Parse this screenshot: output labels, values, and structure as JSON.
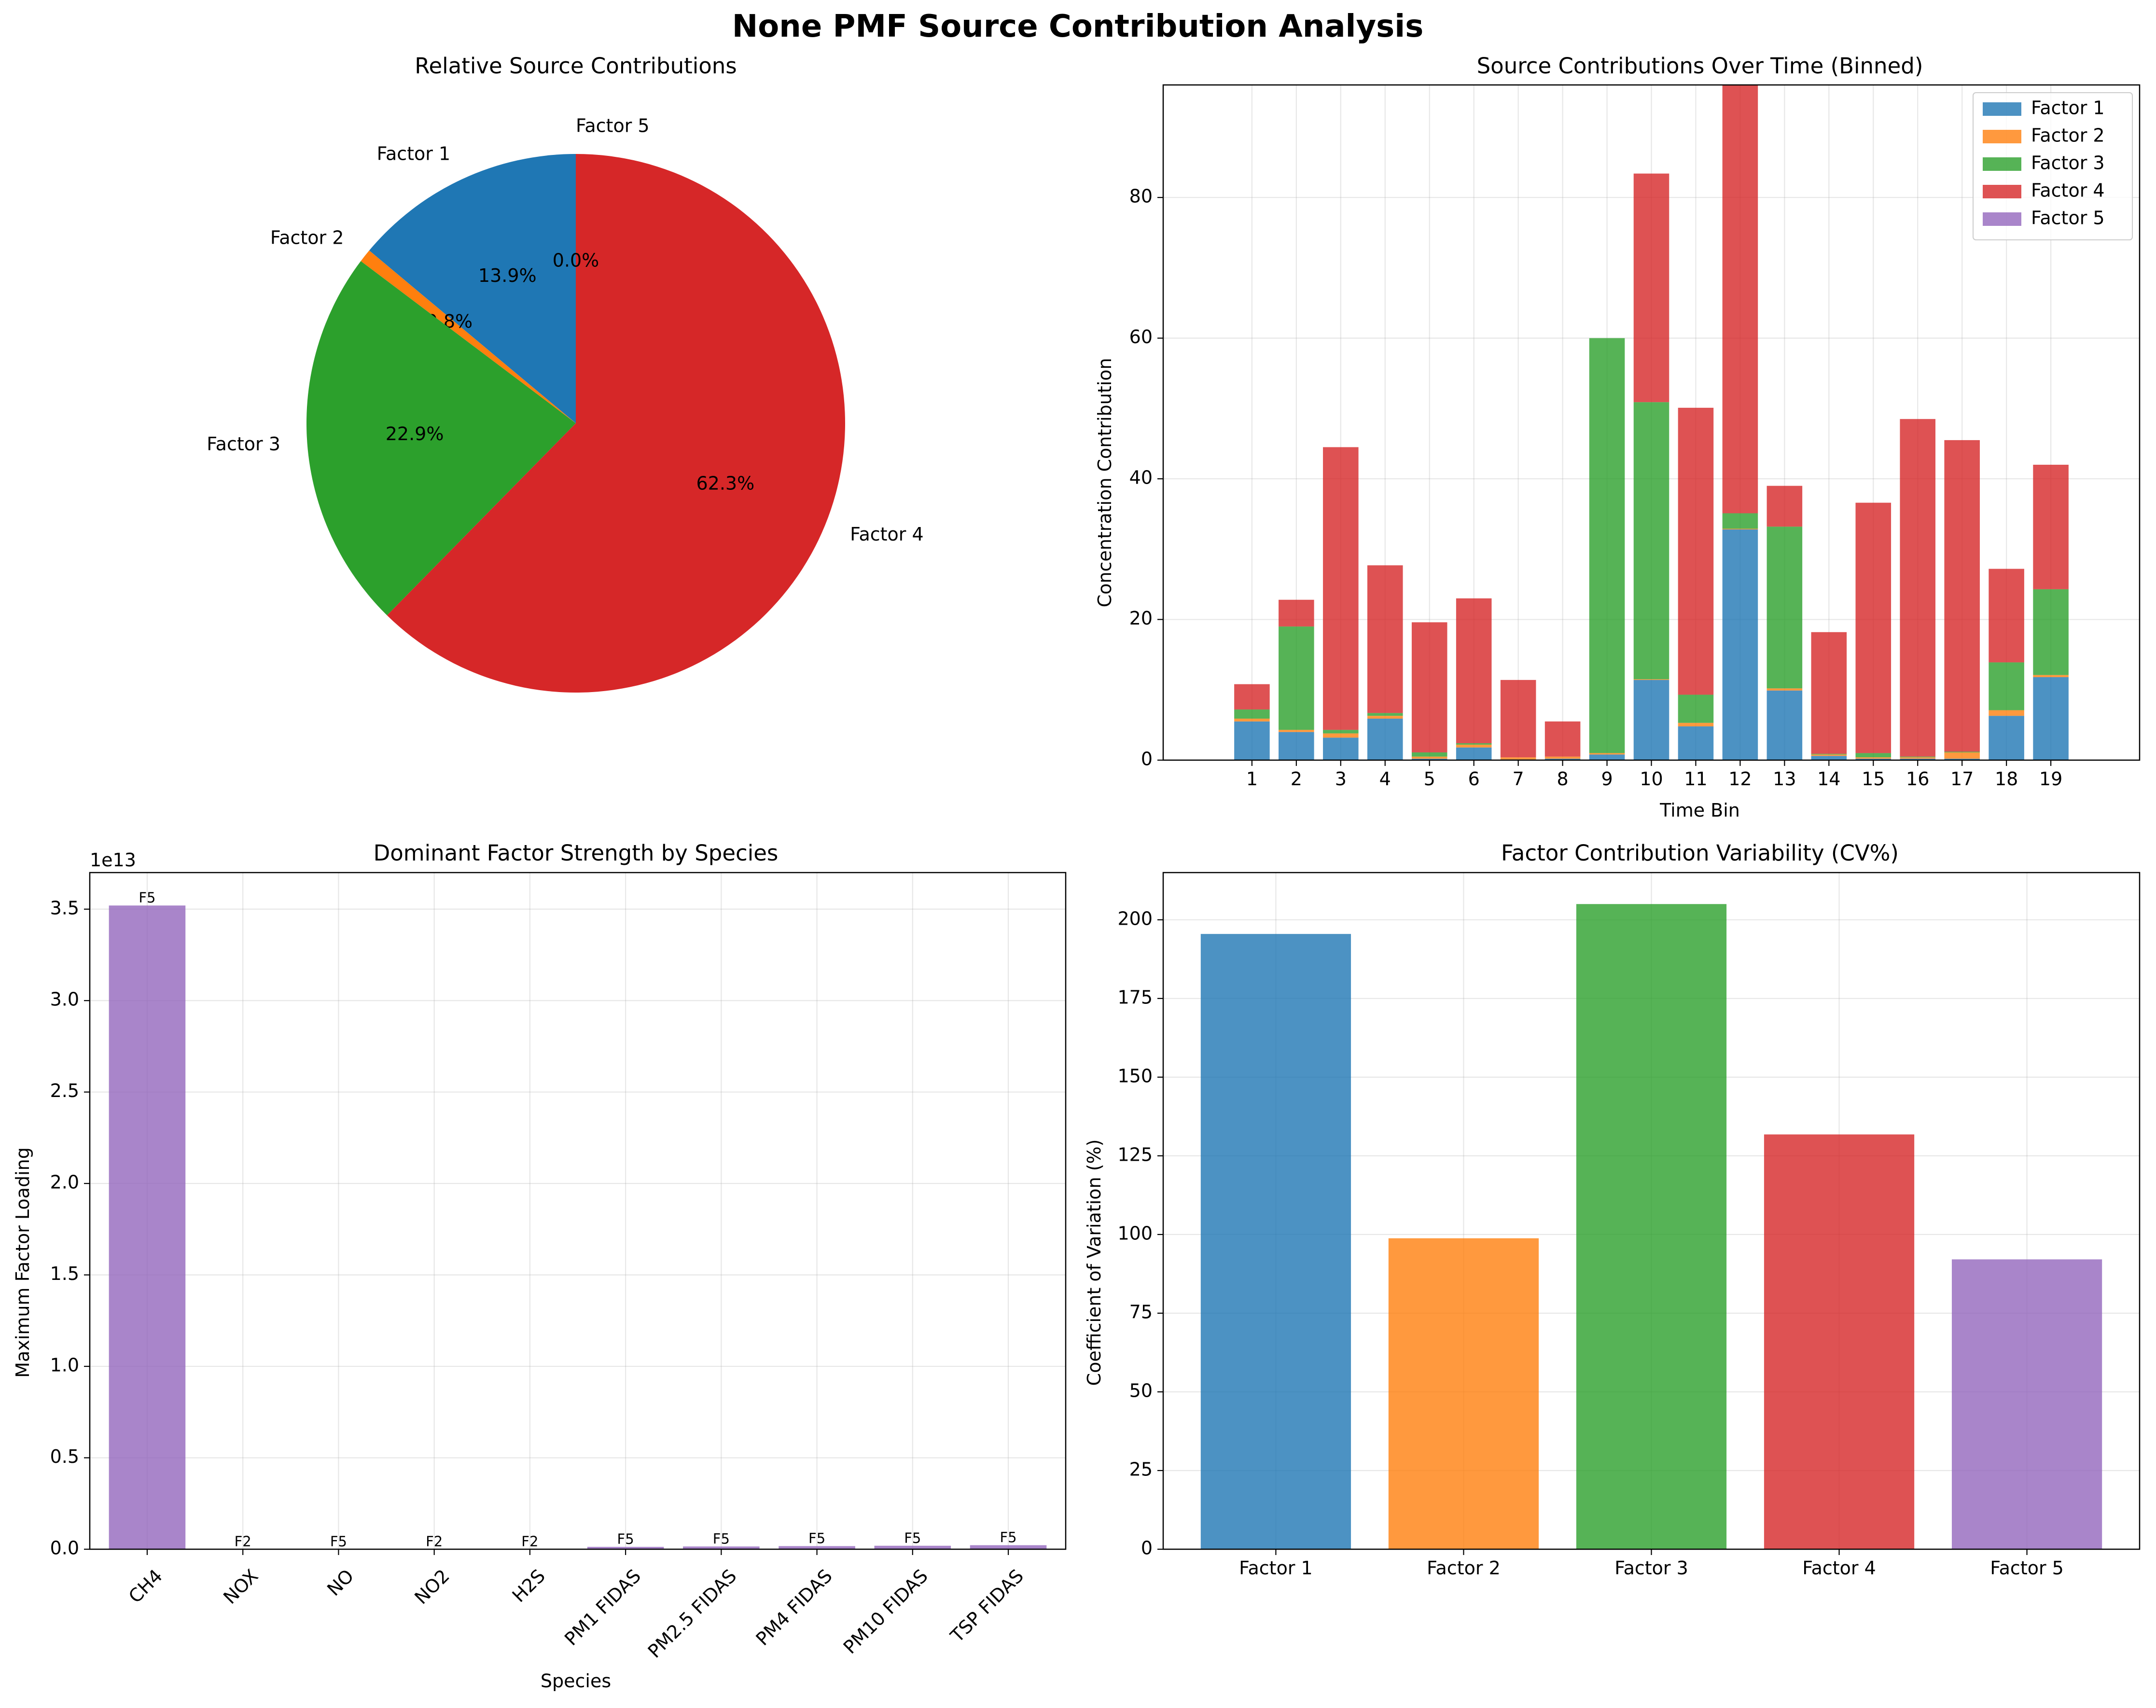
{
  "figure": {
    "title": "None PMF Source Contribution Analysis"
  },
  "colors": {
    "Factor 1": "#1f77b4",
    "Factor 2": "#ff7f0e",
    "Factor 3": "#2ca02c",
    "Factor 4": "#d62728",
    "Factor 5": "#9467bd"
  },
  "chart_data": [
    {
      "type": "pie",
      "title": "Relative Source Contributions",
      "labels": [
        "Factor 1",
        "Factor 2",
        "Factor 3",
        "Factor 4",
        "Factor 5"
      ],
      "values": [
        13.9,
        0.8,
        22.9,
        62.3,
        0.0
      ],
      "autopct": [
        "13.9%",
        "0.8%",
        "22.9%",
        "62.3%",
        "0.0%"
      ],
      "start_angle_deg": 90,
      "direction": "counterclockwise"
    },
    {
      "type": "bar",
      "stacked": true,
      "title": "Source Contributions Over Time (Binned)",
      "xlabel": "Time Bin",
      "ylabel": "Concentration Contribution",
      "categories": [
        "1",
        "2",
        "3",
        "4",
        "5",
        "6",
        "7",
        "8",
        "9",
        "10",
        "11",
        "12",
        "13",
        "14",
        "15",
        "16",
        "17",
        "18",
        "19"
      ],
      "ylim": [
        0,
        96
      ],
      "yticks": [
        0,
        20,
        40,
        60,
        80
      ],
      "legend": "top-right",
      "grid": true,
      "series": [
        {
          "name": "Factor 1",
          "values": [
            5.5,
            4.0,
            3.2,
            5.9,
            0.2,
            1.8,
            0.1,
            0.2,
            0.8,
            11.4,
            4.8,
            32.8,
            9.9,
            0.6,
            0.2,
            0.2,
            0.2,
            6.3,
            11.8
          ]
        },
        {
          "name": "Factor 2",
          "values": [
            0.4,
            0.3,
            0.6,
            0.4,
            0.3,
            0.4,
            0.3,
            0.3,
            0.2,
            0.1,
            0.5,
            0.1,
            0.3,
            0.2,
            0.2,
            0.2,
            0.9,
            0.8,
            0.3
          ]
        },
        {
          "name": "Factor 3",
          "values": [
            1.3,
            14.7,
            0.5,
            0.4,
            0.6,
            0.2,
            0.0,
            0.0,
            59.0,
            39.4,
            4.0,
            2.2,
            23.0,
            0.1,
            0.6,
            0.1,
            0.1,
            6.8,
            12.2
          ]
        },
        {
          "name": "Factor 4",
          "values": [
            3.6,
            3.8,
            40.2,
            21.0,
            18.5,
            20.6,
            11.0,
            5.0,
            0.0,
            32.5,
            40.8,
            61.0,
            5.8,
            17.3,
            35.6,
            48.0,
            44.3,
            13.3,
            17.7
          ]
        },
        {
          "name": "Factor 5",
          "values": [
            0.0,
            0.0,
            0.0,
            0.0,
            0.0,
            0.0,
            0.0,
            0.0,
            0.0,
            0.0,
            0.0,
            0.0,
            0.0,
            0.0,
            0.0,
            0.0,
            0.0,
            0.0,
            0.0
          ]
        }
      ]
    },
    {
      "type": "bar",
      "title": "Dominant Factor Strength by Species",
      "xlabel": "Species",
      "ylabel": "Maximum Factor Loading",
      "offset_text": "1e13",
      "categories": [
        "CH4",
        "NOX",
        "NO",
        "NO2",
        "H2S",
        "PM1 FIDAS",
        "PM2.5 FIDAS",
        "PM4 FIDAS",
        "PM10 FIDAS",
        "TSP FIDAS"
      ],
      "values": [
        3.52,
        0.0,
        0.0,
        0.0,
        0.0,
        0.013,
        0.015,
        0.017,
        0.019,
        0.022
      ],
      "value_scale": "1e13",
      "bar_labels": [
        "F5",
        "F2",
        "F5",
        "F2",
        "F2",
        "F5",
        "F5",
        "F5",
        "F5",
        "F5"
      ],
      "ylim": [
        0,
        3.7
      ],
      "yticks": [
        "0.0",
        "0.5",
        "1.0",
        "1.5",
        "2.0",
        "2.5",
        "3.0",
        "3.5"
      ],
      "grid": true
    },
    {
      "type": "bar",
      "title": "Factor Contribution Variability (CV%)",
      "ylabel": "Coefficient of Variation (%)",
      "categories": [
        "Factor 1",
        "Factor 2",
        "Factor 3",
        "Factor 4",
        "Factor 5"
      ],
      "values": [
        195.5,
        98.8,
        205.0,
        131.8,
        92.1
      ],
      "ylim": [
        0,
        215
      ],
      "yticks": [
        0,
        25,
        50,
        75,
        100,
        125,
        150,
        175,
        200
      ],
      "grid": true
    }
  ]
}
